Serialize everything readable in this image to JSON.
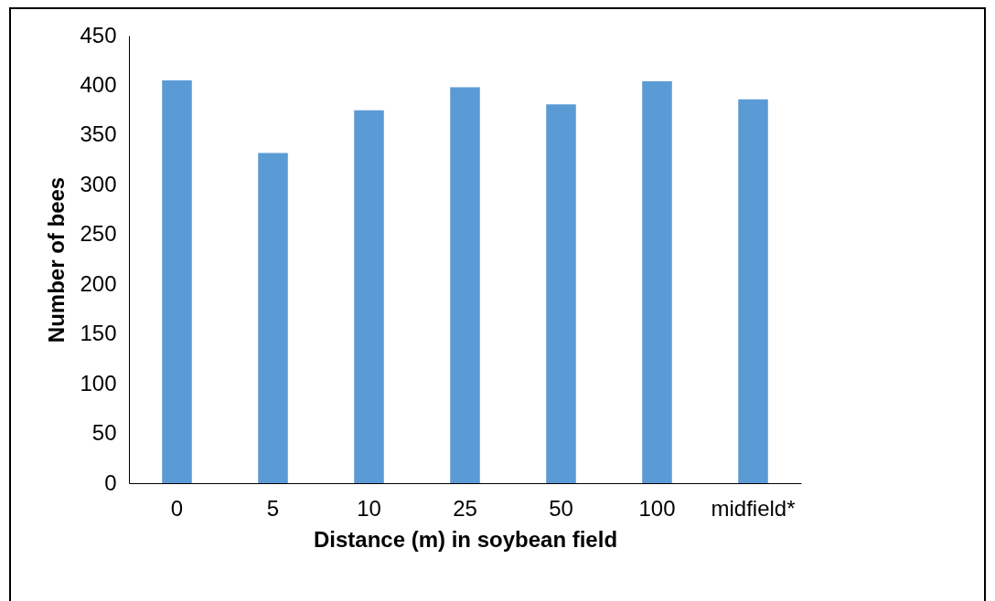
{
  "chart_data": {
    "type": "bar",
    "xlabel": "Distance (m) in soybean field",
    "ylabel": "Number of bees",
    "categories": [
      "0",
      "5",
      "10",
      "25",
      "50",
      "100",
      "midfield*"
    ],
    "values": [
      405,
      332,
      375,
      398,
      381,
      404,
      386
    ],
    "color": "#5b9bd5",
    "ylim": [
      0,
      450
    ],
    "yticks": [
      0,
      50,
      100,
      150,
      200,
      250,
      300,
      350,
      400,
      450
    ],
    "grid": false
  }
}
